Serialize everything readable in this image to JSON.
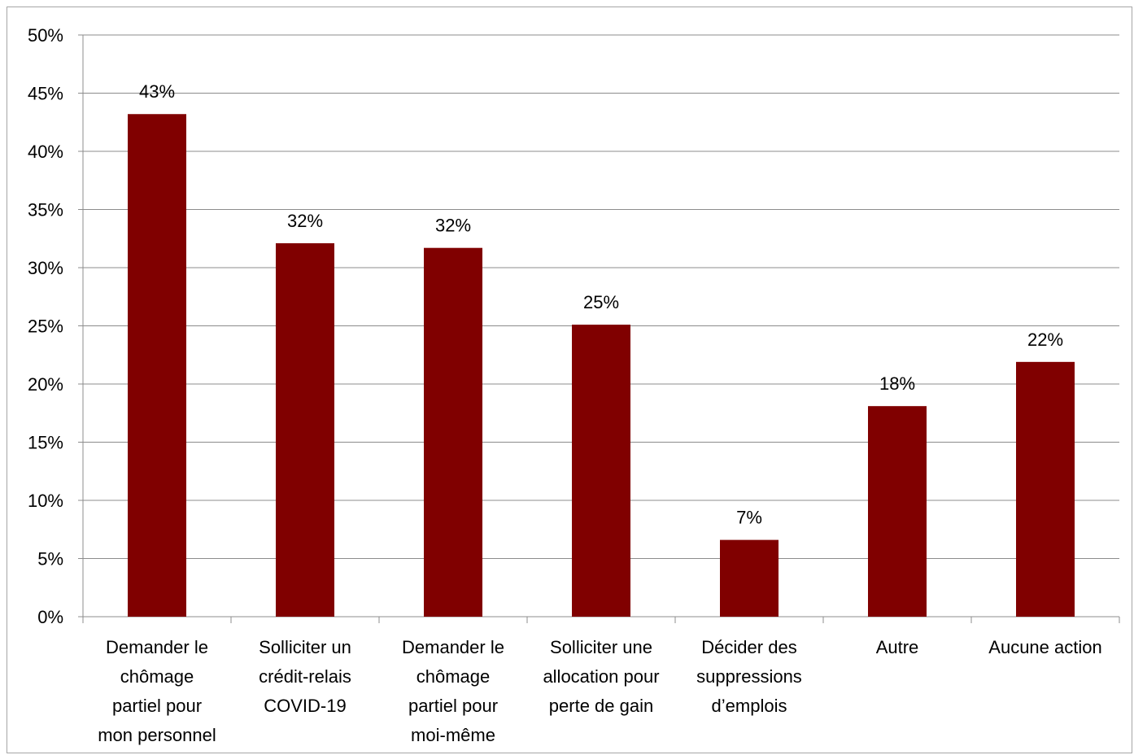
{
  "chart_data": {
    "type": "bar",
    "categories": [
      "Demander le chômage partiel pour mon personnel",
      "Solliciter un crédit-relais COVID-19",
      "Demander le chômage partiel pour moi-même",
      "Solliciter une allocation pour perte de gain",
      "Décider des suppressions d’emplois",
      "Autre",
      "Aucune action"
    ],
    "category_lines": [
      [
        "Demander le",
        "chômage",
        "partiel pour",
        "mon personnel"
      ],
      [
        "Solliciter un",
        "crédit-relais",
        "COVID-19"
      ],
      [
        "Demander le",
        "chômage",
        "partiel pour",
        "moi-même"
      ],
      [
        "Solliciter une",
        "allocation pour",
        "perte de gain"
      ],
      [
        "Décider des",
        "suppressions",
        "d’emplois"
      ],
      [
        "Autre"
      ],
      [
        "Aucune action"
      ]
    ],
    "values": [
      43.2,
      32.1,
      31.7,
      25.1,
      6.6,
      18.1,
      21.9
    ],
    "data_labels": [
      "43%",
      "32%",
      "32%",
      "25%",
      "7%",
      "18%",
      "22%"
    ],
    "y_ticks": [
      "0%",
      "5%",
      "10%",
      "15%",
      "20%",
      "25%",
      "30%",
      "35%",
      "40%",
      "45%",
      "50%"
    ],
    "title": "",
    "xlabel": "",
    "ylabel": "",
    "ylim": [
      0,
      50
    ],
    "grid": true,
    "legend": "none",
    "bar_color": "#800000",
    "grid_color": "#8c8c8c"
  }
}
